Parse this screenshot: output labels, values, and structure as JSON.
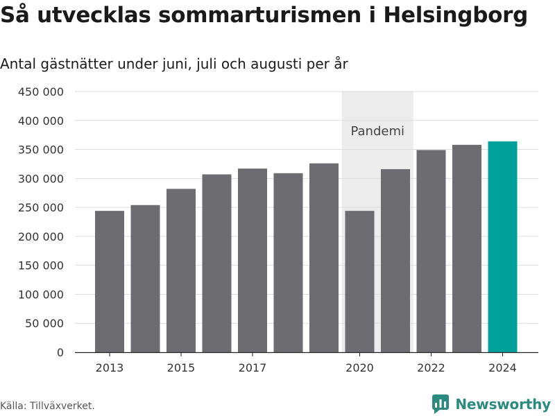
{
  "title": "Så utvecklas sommarturismen i Helsingborg",
  "subtitle": "Antal gästnätter under juni, juli och augusti per år",
  "source": "Källa: Tillväxverket.",
  "brand": "Newsworthy",
  "colors": {
    "bar": "#6d6c71",
    "highlight": "#00a19a",
    "shade": "#ececec",
    "brand": "#2a8a7e"
  },
  "chart_data": {
    "type": "bar",
    "x": [
      2013,
      2014,
      2015,
      2016,
      2017,
      2018,
      2019,
      2020,
      2021,
      2022,
      2023,
      2024
    ],
    "values": [
      244000,
      254000,
      282000,
      307000,
      317000,
      309000,
      326000,
      244000,
      316000,
      349000,
      358000,
      364000
    ],
    "highlight": [
      2024
    ],
    "ylim": [
      0,
      450000
    ],
    "yticks": [
      0,
      50000,
      100000,
      150000,
      200000,
      250000,
      300000,
      350000,
      400000,
      450000
    ],
    "ytick_labels": [
      "0",
      "50 000",
      "100 000",
      "150 000",
      "200 000",
      "250 000",
      "300 000",
      "350 000",
      "400 000",
      "450 000"
    ],
    "xticks": [
      2013,
      2015,
      2017,
      2020,
      2022,
      2024
    ],
    "xtick_labels": [
      "2013",
      "2015",
      "2017",
      "2020",
      "2022",
      "2024"
    ],
    "grid": true,
    "annotation": {
      "label": "Pandemi",
      "span": [
        2020,
        2021
      ]
    }
  }
}
